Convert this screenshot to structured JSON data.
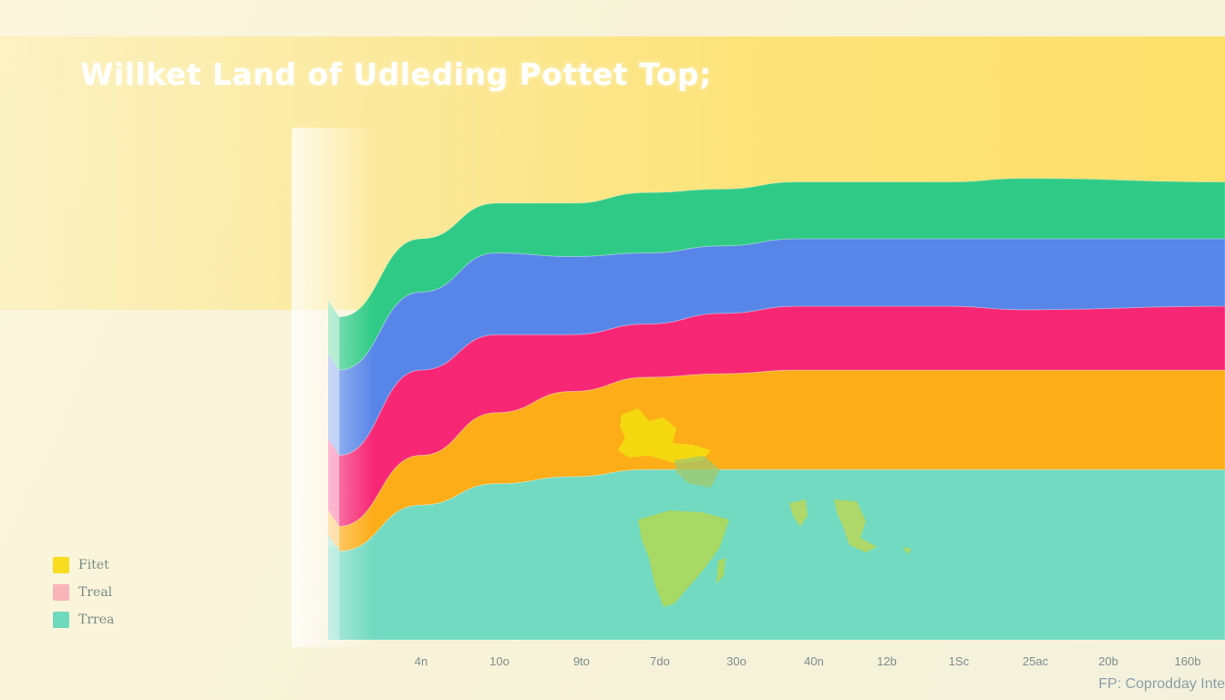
{
  "chart_data": {
    "type": "area",
    "title": "Willket Land of Udleding Pottet Top;",
    "categories": [
      "4n",
      "10o",
      "9to",
      "7do",
      "30o",
      "40n",
      "12b",
      "1Sc",
      "25ac",
      "20b",
      "160b"
    ],
    "stacked": true,
    "legend": {
      "placement": "bottom-left",
      "entries": [
        {
          "label": "Fitet",
          "color": "#f8dc1f"
        },
        {
          "label": "Treal",
          "color": "#f8b4b8"
        },
        {
          "label": "Trrea",
          "color": "#6fd9bc"
        }
      ]
    },
    "series": [
      {
        "color": "#72dac0",
        "values": [
          25,
          38,
          44,
          46,
          48,
          48,
          48,
          48,
          48,
          48,
          48
        ]
      },
      {
        "color": "#fdad17",
        "values": [
          7,
          14,
          20,
          24,
          26,
          27,
          28,
          28,
          28,
          28,
          28
        ]
      },
      {
        "color": "#f72775",
        "values": [
          20,
          24,
          22,
          16,
          15,
          17,
          18,
          18,
          18,
          17,
          18
        ]
      },
      {
        "color": "#5886e8",
        "values": [
          24,
          22,
          23,
          22,
          20,
          19,
          19,
          19,
          19,
          20,
          19
        ]
      },
      {
        "color": "#2fcb86",
        "values": [
          15,
          15,
          14,
          15,
          17,
          16,
          16,
          16,
          16,
          17,
          16
        ]
      }
    ],
    "ylim": [
      0,
      170
    ],
    "grid": false,
    "footnote": "FP: Coprodday Inte"
  }
}
